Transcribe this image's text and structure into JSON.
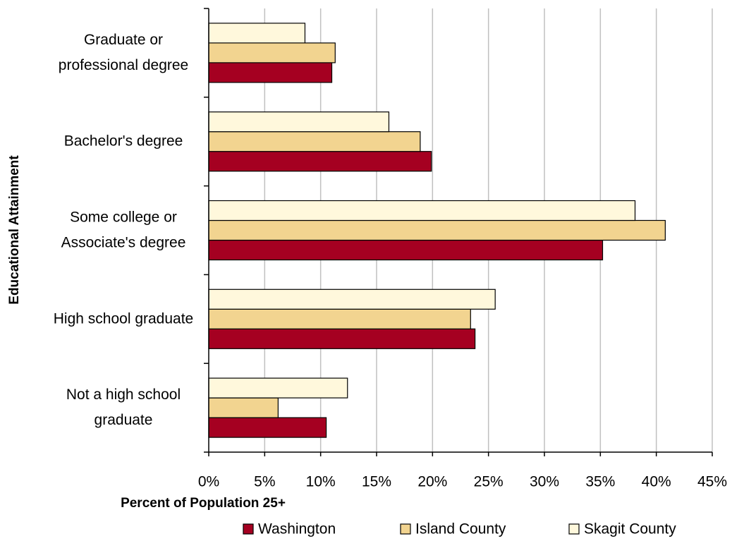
{
  "chart_data": {
    "type": "bar",
    "orientation": "horizontal",
    "x_label": "Percent of Population 25+",
    "y_label": "Educational Attainment",
    "categories": [
      "Graduate or\nprofessional degree",
      "Bachelor's degree",
      "Some college or\nAssociate's degree",
      "High school graduate",
      "Not a high school\ngraduate"
    ],
    "series": [
      {
        "name": "Washington",
        "color": "#a50021",
        "values": [
          11.0,
          19.9,
          35.2,
          23.8,
          10.5
        ]
      },
      {
        "name": "Island County",
        "color": "#f2d490",
        "values": [
          11.3,
          18.9,
          40.8,
          23.4,
          6.2
        ]
      },
      {
        "name": "Skagit County",
        "color": "#fff8dc",
        "values": [
          8.6,
          16.1,
          38.1,
          25.6,
          12.4
        ]
      }
    ],
    "xlim": [
      0,
      45
    ],
    "xticks": [
      {
        "value": 0,
        "label": "0%"
      },
      {
        "value": 5,
        "label": "5%"
      },
      {
        "value": 10,
        "label": "10%"
      },
      {
        "value": 15,
        "label": "15%"
      },
      {
        "value": 20,
        "label": "20%"
      },
      {
        "value": 25,
        "label": "25%"
      },
      {
        "value": 30,
        "label": "30%"
      },
      {
        "value": 35,
        "label": "35%"
      },
      {
        "value": 40,
        "label": "40%"
      },
      {
        "value": 45,
        "label": "45%"
      }
    ],
    "grid": true,
    "legend": "bottom"
  }
}
